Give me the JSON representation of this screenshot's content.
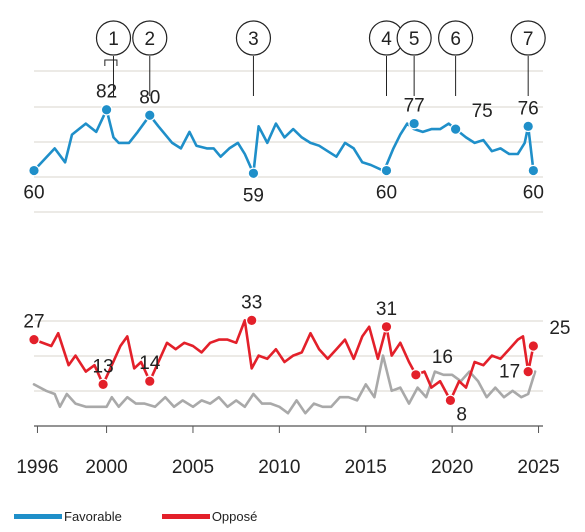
{
  "colors": {
    "favorable": "#1f8fc9",
    "opposed": "#e3202a",
    "other": "#a9a9a9",
    "grid": "#d9d6cc",
    "axis": "#555555",
    "text": "#222222"
  },
  "legend": [
    {
      "label": "Favorable",
      "color": "#1f8fc9"
    },
    {
      "label": "Opposé",
      "color": "#e3202a"
    }
  ],
  "annotations": [
    {
      "label": "1",
      "x": 2000.4,
      "bracket": [
        1999.9,
        2000.6
      ]
    },
    {
      "label": "2",
      "x": 2002.5
    },
    {
      "label": "3",
      "x": 2008.5
    },
    {
      "label": "4",
      "x": 2016.2
    },
    {
      "label": "5",
      "x": 2017.8
    },
    {
      "label": "6",
      "x": 2020.2
    },
    {
      "label": "7",
      "x": 2024.4
    }
  ],
  "chart_data": [
    {
      "type": "line",
      "grid": true,
      "xlim": [
        1995.8,
        2025.2
      ],
      "ylim": [
        45,
        100
      ],
      "series": [
        {
          "name": "Favorable",
          "color": "#1f8fc9",
          "x": [
            1995.8,
            1997.0,
            1997.6,
            1998.0,
            1998.8,
            1999.4,
            2000.0,
            2000.4,
            2000.7,
            2001.3,
            2001.8,
            2002.5,
            2003.0,
            2003.8,
            2004.3,
            2004.8,
            2005.2,
            2005.8,
            2006.2,
            2006.6,
            2007.1,
            2007.6,
            2008.0,
            2008.5,
            2008.8,
            2009.3,
            2009.8,
            2010.3,
            2010.8,
            2011.3,
            2011.8,
            2012.3,
            2012.8,
            2013.3,
            2013.8,
            2014.3,
            2014.8,
            2015.3,
            2016.0,
            2016.2,
            2016.6,
            2017.0,
            2017.4,
            2017.8,
            2018.3,
            2018.8,
            2019.3,
            2019.8,
            2020.2,
            2020.8,
            2021.3,
            2021.8,
            2022.3,
            2022.8,
            2023.3,
            2023.8,
            2024.0,
            2024.2,
            2024.4,
            2024.7
          ],
          "values": [
            60,
            68,
            63,
            73,
            77,
            74,
            82,
            72,
            70,
            70,
            74,
            80,
            76,
            70,
            68,
            74,
            69,
            68,
            68,
            65,
            68,
            70,
            66,
            59,
            76,
            70,
            77,
            72,
            75,
            72,
            70,
            69,
            67,
            65,
            70,
            68,
            63,
            62,
            60,
            62,
            68,
            73,
            77,
            75,
            74,
            75,
            75,
            77,
            75,
            72,
            70,
            71,
            67,
            68,
            66,
            66,
            68,
            70,
            76,
            60
          ]
        }
      ],
      "labels": [
        {
          "text": "60",
          "x": 1995.8,
          "y": 60,
          "pos": "below"
        },
        {
          "text": "82",
          "x": 2000.0,
          "y": 82,
          "pos": "above"
        },
        {
          "text": "80",
          "x": 2002.5,
          "y": 80,
          "pos": "above"
        },
        {
          "text": "59",
          "x": 2008.5,
          "y": 59,
          "pos": "below"
        },
        {
          "text": "60",
          "x": 2016.2,
          "y": 60,
          "pos": "below"
        },
        {
          "text": "77",
          "x": 2017.8,
          "y": 77,
          "pos": "above"
        },
        {
          "text": "75",
          "x": 2020.2,
          "y": 75,
          "pos": "above-right"
        },
        {
          "text": "76",
          "x": 2024.4,
          "y": 76,
          "pos": "above"
        },
        {
          "text": "60",
          "x": 2024.7,
          "y": 60,
          "pos": "below"
        }
      ]
    },
    {
      "type": "line",
      "grid": true,
      "xlim": [
        1995.8,
        2025.2
      ],
      "ylim": [
        0,
        40
      ],
      "xticks": [
        "1996",
        "2000",
        "2005",
        "2010",
        "2015",
        "2020",
        "2025"
      ],
      "xtick_values": [
        1996,
        2000,
        2005,
        2010,
        2015,
        2020,
        2025
      ],
      "series": [
        {
          "name": "Opposé",
          "color": "#e3202a",
          "x": [
            1995.8,
            1996.8,
            1997.2,
            1997.8,
            1998.2,
            1998.8,
            1999.3,
            1999.8,
            2000.3,
            2000.8,
            2001.2,
            2001.6,
            2002.0,
            2002.5,
            2003.0,
            2003.5,
            2004.0,
            2004.5,
            2005.0,
            2005.5,
            2006.0,
            2006.5,
            2007.0,
            2007.5,
            2008.0,
            2008.4,
            2008.8,
            2009.3,
            2009.8,
            2010.3,
            2010.8,
            2011.3,
            2011.8,
            2012.3,
            2012.8,
            2013.3,
            2013.8,
            2014.3,
            2014.8,
            2015.2,
            2015.7,
            2016.2,
            2016.5,
            2017.0,
            2017.5,
            2017.9,
            2018.4,
            2018.8,
            2019.3,
            2019.9,
            2020.4,
            2020.8,
            2021.3,
            2021.8,
            2022.3,
            2022.8,
            2023.3,
            2023.8,
            2024.1,
            2024.4,
            2024.7
          ],
          "values": [
            27,
            25,
            29,
            19,
            22,
            17,
            19,
            13,
            19,
            25,
            28,
            18,
            20,
            14,
            20,
            26,
            24,
            26,
            25,
            23,
            26,
            27,
            27,
            26,
            33,
            18,
            22,
            21,
            24,
            20,
            22,
            23,
            29,
            24,
            21,
            24,
            27,
            21,
            28,
            31,
            21,
            31,
            22,
            26,
            20,
            16,
            17,
            12,
            14,
            8,
            14,
            12,
            20,
            19,
            22,
            21,
            24,
            27,
            28,
            17,
            25
          ]
        },
        {
          "name": "",
          "color": "#a9a9a9",
          "x": [
            1995.8,
            1996.5,
            1997.0,
            1997.3,
            1997.7,
            1998.2,
            1998.8,
            1999.4,
            2000.0,
            2000.3,
            2000.7,
            2001.2,
            2001.7,
            2002.2,
            2002.8,
            2003.4,
            2003.9,
            2004.4,
            2005.0,
            2005.5,
            2006.0,
            2006.5,
            2007.0,
            2007.5,
            2008.0,
            2008.5,
            2009.0,
            2009.5,
            2010.0,
            2010.5,
            2011.0,
            2011.5,
            2012.0,
            2012.5,
            2013.0,
            2013.5,
            2014.0,
            2014.5,
            2015.0,
            2015.5,
            2016.0,
            2016.5,
            2017.0,
            2017.5,
            2018.0,
            2018.5,
            2019.0,
            2019.5,
            2020.0,
            2020.5,
            2021.0,
            2021.5,
            2022.0,
            2022.5,
            2023.0,
            2023.5,
            2024.0,
            2024.4,
            2024.8
          ],
          "values": [
            13,
            11,
            10,
            6,
            10,
            7,
            6,
            6,
            6,
            9,
            6,
            9,
            7,
            7,
            6,
            9,
            6,
            8,
            6,
            8,
            7,
            9,
            6,
            8,
            6,
            10,
            7,
            7,
            6,
            4,
            8,
            4,
            7,
            6,
            6,
            9,
            9,
            8,
            13,
            9,
            22,
            11,
            12,
            7,
            12,
            9,
            17,
            16,
            16,
            14,
            17,
            14,
            9,
            12,
            9,
            11,
            9,
            10,
            17
          ]
        }
      ],
      "labels": [
        {
          "text": "27",
          "x": 1995.8,
          "y": 27,
          "pos": "above"
        },
        {
          "text": "13",
          "x": 1999.8,
          "y": 13,
          "pos": "above"
        },
        {
          "text": "14",
          "x": 2002.5,
          "y": 14,
          "pos": "above"
        },
        {
          "text": "33",
          "x": 2008.4,
          "y": 33,
          "pos": "above"
        },
        {
          "text": "31",
          "x": 2016.2,
          "y": 31,
          "pos": "above"
        },
        {
          "text": "16",
          "x": 2017.9,
          "y": 16,
          "pos": "above-right"
        },
        {
          "text": "8",
          "x": 2019.9,
          "y": 8,
          "pos": "right-below"
        },
        {
          "text": "17",
          "x": 2024.4,
          "y": 17,
          "pos": "left"
        },
        {
          "text": "25",
          "x": 2024.7,
          "y": 25,
          "pos": "above-right"
        }
      ]
    }
  ]
}
